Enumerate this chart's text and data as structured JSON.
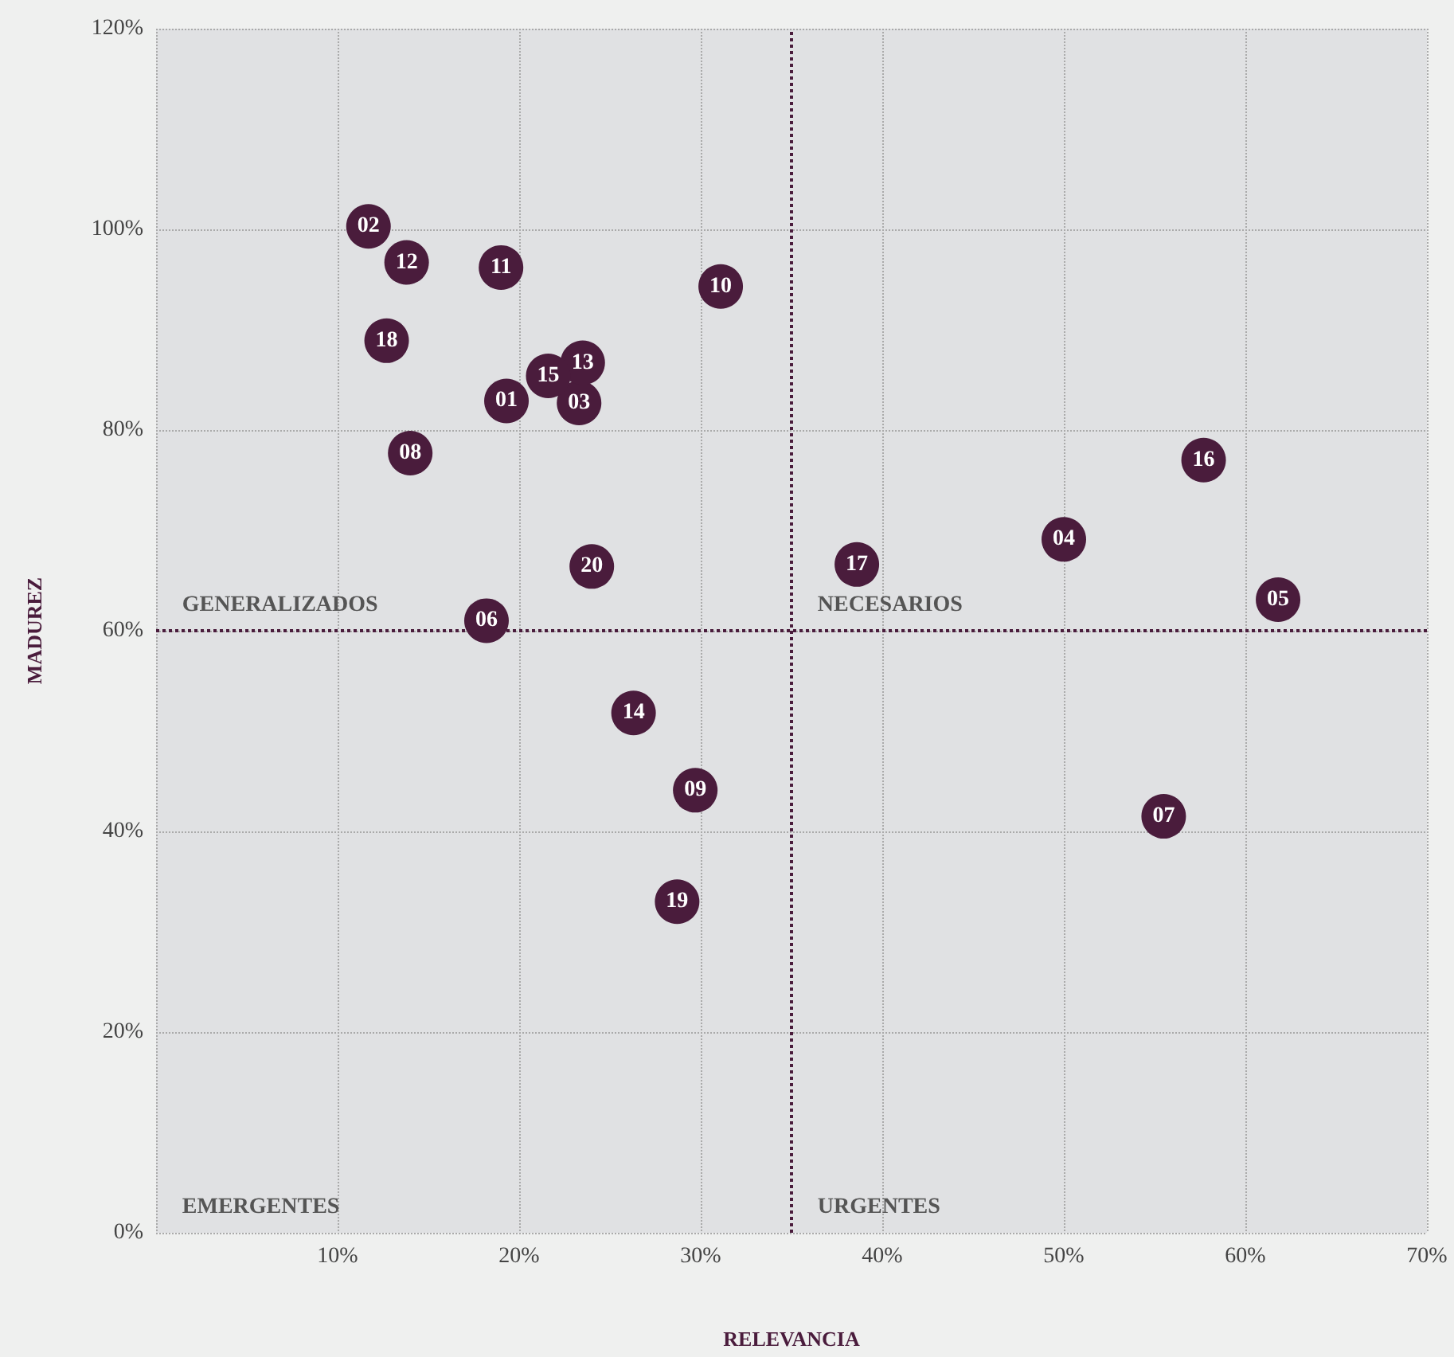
{
  "chart_data": {
    "type": "scatter",
    "xlabel": "RELEVANCIA",
    "ylabel": "MADUREZ",
    "series": [
      {
        "name": "01",
        "color": "#4a1c3c",
        "x": [
          19.3
        ],
        "values": [
          82.9
        ]
      },
      {
        "name": "02",
        "color": "#4a1c3c",
        "x": [
          11.7
        ],
        "values": [
          100.3
        ]
      },
      {
        "name": "03",
        "color": "#4a1c3c",
        "x": [
          23.3
        ],
        "values": [
          82.7
        ]
      },
      {
        "name": "04",
        "color": "#4a1c3c",
        "x": [
          50.0
        ],
        "values": [
          69.1
        ]
      },
      {
        "name": "05",
        "color": "#4a1c3c",
        "x": [
          61.8
        ],
        "values": [
          63.1
        ]
      },
      {
        "name": "06",
        "color": "#4a1c3c",
        "x": [
          18.2
        ],
        "values": [
          61.0
        ]
      },
      {
        "name": "07",
        "color": "#4a1c3c",
        "x": [
          55.5
        ],
        "values": [
          41.5
        ]
      },
      {
        "name": "08",
        "color": "#4a1c3c",
        "x": [
          14.0
        ],
        "values": [
          77.7
        ]
      },
      {
        "name": "09",
        "color": "#4a1c3c",
        "x": [
          29.7
        ],
        "values": [
          44.1
        ]
      },
      {
        "name": "10",
        "color": "#4a1c3c",
        "x": [
          31.1
        ],
        "values": [
          94.3
        ]
      },
      {
        "name": "11",
        "color": "#4a1c3c",
        "x": [
          19.0
        ],
        "values": [
          96.2
        ]
      },
      {
        "name": "12",
        "color": "#4a1c3c",
        "x": [
          13.8
        ],
        "values": [
          96.7
        ]
      },
      {
        "name": "13",
        "color": "#4a1c3c",
        "x": [
          23.5
        ],
        "values": [
          86.7
        ]
      },
      {
        "name": "14",
        "color": "#4a1c3c",
        "x": [
          26.3
        ],
        "values": [
          51.8
        ]
      },
      {
        "name": "15",
        "color": "#4a1c3c",
        "x": [
          21.6
        ],
        "values": [
          85.4
        ]
      },
      {
        "name": "16",
        "color": "#4a1c3c",
        "x": [
          57.7
        ],
        "values": [
          77.0
        ]
      },
      {
        "name": "17",
        "color": "#4a1c3c",
        "x": [
          38.6
        ],
        "values": [
          66.6
        ]
      },
      {
        "name": "18",
        "color": "#4a1c3c",
        "x": [
          12.7
        ],
        "values": [
          88.9
        ]
      },
      {
        "name": "19",
        "color": "#4a1c3c",
        "x": [
          28.7
        ],
        "values": [
          33.0
        ]
      },
      {
        "name": "20",
        "color": "#4a1c3c",
        "x": [
          24.0
        ],
        "values": [
          66.4
        ]
      }
    ],
    "xlim": [
      0,
      70
    ],
    "xticks": [
      {
        "value": 0,
        "label": null
      },
      {
        "value": 10,
        "label": "10%"
      },
      {
        "value": 20,
        "label": "20%"
      },
      {
        "value": 30,
        "label": "30%"
      },
      {
        "value": 40,
        "label": "40%"
      },
      {
        "value": 50,
        "label": "50%"
      },
      {
        "value": 60,
        "label": "60%"
      },
      {
        "value": 70,
        "label": "70%"
      }
    ],
    "ylim": [
      0,
      120
    ],
    "yticks": [
      {
        "value": 0,
        "label": "0%"
      },
      {
        "value": 20,
        "label": "20%"
      },
      {
        "value": 40,
        "label": "40%"
      },
      {
        "value": 60,
        "label": "60%"
      },
      {
        "value": 80,
        "label": "80%"
      },
      {
        "value": 100,
        "label": "100%"
      },
      {
        "value": 120,
        "label": "120%"
      }
    ],
    "ref_lines": [
      {
        "axis": "x",
        "value": 35,
        "color": "#4a1c3c",
        "line_style": "dotted"
      },
      {
        "axis": "y",
        "value": 60,
        "color": "#4a1c3c",
        "line_style": "dotted"
      }
    ],
    "annotations": [
      "GENERALIZADOS",
      "NECESARIOS",
      "EMERGENTES",
      "URGENTES"
    ],
    "grid": true,
    "marker": "circle"
  }
}
